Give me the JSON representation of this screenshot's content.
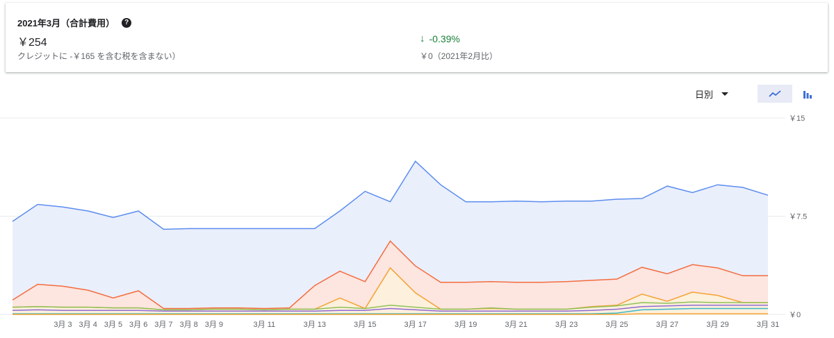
{
  "summary": {
    "title": "2021年3月（合計費用）",
    "amount": "￥254",
    "note": "クレジットに -￥165 を含む税を含まない）",
    "change": "-0.39%",
    "compare": "￥0（2021年2月比）"
  },
  "controls": {
    "period_label": "日別",
    "line_icon": "line-chart-icon",
    "bar_icon": "bar-chart-icon"
  },
  "colors": {
    "blue": "#5b8def",
    "orange": "#f36c3d",
    "yellow": "#f4a234",
    "green": "#8fc05a",
    "purple": "#8e6bd3",
    "teal": "#3bb8c4",
    "accent_green": "#188038"
  },
  "chart_data": {
    "type": "area",
    "x": [
      1,
      2,
      3,
      4,
      5,
      6,
      7,
      8,
      9,
      10,
      11,
      12,
      13,
      14,
      15,
      16,
      17,
      18,
      19,
      20,
      21,
      22,
      23,
      24,
      25,
      26,
      27,
      28,
      29,
      30,
      31
    ],
    "xticks": [
      {
        "day": 3,
        "label": "3月 3"
      },
      {
        "day": 4,
        "label": "3月 4"
      },
      {
        "day": 5,
        "label": "3月 5"
      },
      {
        "day": 6,
        "label": "3月 6"
      },
      {
        "day": 7,
        "label": "3月 7"
      },
      {
        "day": 8,
        "label": "3月 8"
      },
      {
        "day": 9,
        "label": "3月 9"
      },
      {
        "day": 11,
        "label": "3月 11"
      },
      {
        "day": 13,
        "label": "3月 13"
      },
      {
        "day": 15,
        "label": "3月 15"
      },
      {
        "day": 17,
        "label": "3月 17"
      },
      {
        "day": 19,
        "label": "3月 19"
      },
      {
        "day": 21,
        "label": "3月 21"
      },
      {
        "day": 23,
        "label": "3月 23"
      },
      {
        "day": 25,
        "label": "3月 25"
      },
      {
        "day": 27,
        "label": "3月 27"
      },
      {
        "day": 29,
        "label": "3月 29"
      },
      {
        "day": 31,
        "label": "3月 31"
      }
    ],
    "ylim": [
      0,
      15
    ],
    "yticks": [
      {
        "value": 0,
        "label": "￥0"
      },
      {
        "value": 7.5,
        "label": "￥7.5"
      },
      {
        "value": 15,
        "label": "￥15"
      }
    ],
    "grid": true,
    "series": [
      {
        "color": "#5b8def",
        "fill": "#eaeffc",
        "values": [
          7.1,
          8.4,
          8.2,
          7.9,
          7.4,
          7.9,
          6.5,
          6.55,
          6.55,
          6.55,
          6.55,
          6.55,
          6.55,
          7.9,
          9.4,
          8.6,
          11.7,
          9.9,
          8.6,
          8.6,
          8.65,
          8.6,
          8.65,
          8.65,
          8.8,
          8.85,
          9.8,
          9.3,
          9.9,
          9.7,
          9.1
        ]
      },
      {
        "color": "#f36c3d",
        "fill": "#fde5e0",
        "values": [
          1.1,
          2.3,
          2.15,
          1.85,
          1.25,
          1.8,
          0.45,
          0.45,
          0.5,
          0.5,
          0.45,
          0.5,
          2.2,
          3.3,
          2.5,
          5.6,
          3.7,
          2.45,
          2.45,
          2.5,
          2.45,
          2.45,
          2.5,
          2.6,
          2.7,
          3.6,
          3.1,
          3.8,
          3.55,
          2.95,
          2.95
        ]
      },
      {
        "color": "#f4a234",
        "fill": "#fdf0dc",
        "values": [
          0.55,
          0.6,
          0.55,
          0.55,
          0.5,
          0.5,
          0.35,
          0.35,
          0.4,
          0.4,
          0.35,
          0.4,
          0.4,
          1.25,
          0.45,
          3.55,
          1.65,
          0.4,
          0.4,
          0.45,
          0.4,
          0.4,
          0.4,
          0.6,
          0.7,
          1.55,
          1.0,
          1.7,
          1.45,
          0.9,
          0.9
        ]
      },
      {
        "color": "#8fc05a",
        "fill": "none",
        "values": [
          0.55,
          0.6,
          0.55,
          0.55,
          0.5,
          0.5,
          0.35,
          0.35,
          0.4,
          0.4,
          0.35,
          0.4,
          0.4,
          0.55,
          0.45,
          0.7,
          0.55,
          0.4,
          0.4,
          0.5,
          0.4,
          0.4,
          0.4,
          0.55,
          0.65,
          0.9,
          0.85,
          0.95,
          0.9,
          0.9,
          0.9
        ]
      },
      {
        "color": "#8e6bd3",
        "fill": "none",
        "values": [
          0.3,
          0.35,
          0.3,
          0.3,
          0.3,
          0.3,
          0.25,
          0.25,
          0.25,
          0.25,
          0.25,
          0.25,
          0.25,
          0.3,
          0.3,
          0.45,
          0.35,
          0.25,
          0.25,
          0.25,
          0.25,
          0.25,
          0.25,
          0.3,
          0.4,
          0.6,
          0.65,
          0.7,
          0.7,
          0.7,
          0.7
        ]
      },
      {
        "color": "#3bb8c4",
        "fill": "none",
        "values": [
          0.05,
          0.05,
          0.05,
          0.05,
          0.05,
          0.05,
          0.05,
          0.05,
          0.05,
          0.05,
          0.05,
          0.05,
          0.05,
          0.05,
          0.05,
          0.05,
          0.05,
          0.05,
          0.05,
          0.05,
          0.05,
          0.05,
          0.05,
          0.05,
          0.1,
          0.35,
          0.4,
          0.45,
          0.45,
          0.45,
          0.45
        ]
      },
      {
        "color": "#f4a234",
        "fill": "none",
        "values": [
          0,
          0,
          0,
          0,
          0,
          0,
          0,
          0,
          0,
          0,
          0,
          0,
          0,
          0,
          0,
          0,
          0,
          0,
          0,
          0,
          0,
          0,
          0,
          0,
          0,
          0.05,
          0.05,
          0.05,
          0.05,
          0.05,
          0.05
        ]
      }
    ]
  }
}
